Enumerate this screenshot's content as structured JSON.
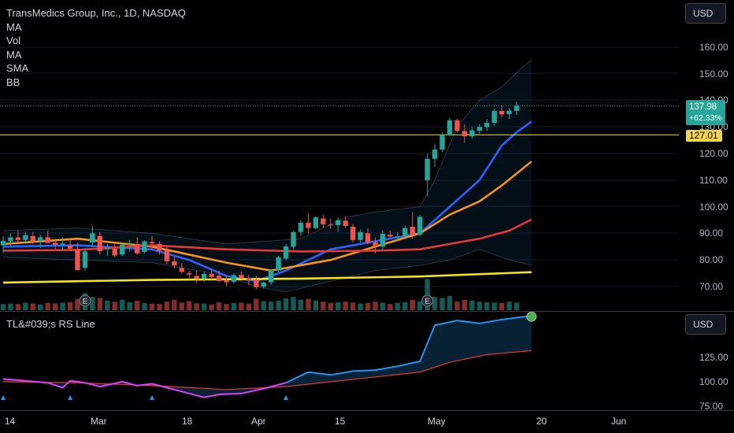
{
  "header": {
    "title": "TransMedics Group, Inc., 1D, NASDAQ",
    "indicators": [
      "MA",
      "Vol",
      "MA",
      "SMA",
      "BB"
    ]
  },
  "currency_button": "USD",
  "rs_pane": {
    "title": "TL&#039;s RS Line",
    "currency_button": "USD",
    "y_ticks": [
      "125.00",
      "100.00",
      "75.00"
    ]
  },
  "price_axis": {
    "ticks": [
      "160.00",
      "150.00",
      "140.00",
      "130.00",
      "120.00",
      "110.00",
      "100.00",
      "90.00",
      "80.00",
      "70.00"
    ],
    "last_price": "137.98",
    "last_change": "+62.33%",
    "hline_value": "127.01"
  },
  "time_axis": {
    "labels": [
      "14",
      "Mar",
      "18",
      "Apr",
      "15",
      "May",
      "20",
      "Jun"
    ]
  },
  "colors": {
    "up": "#26a69a",
    "down": "#ef5350",
    "ma_short": "#2962ff",
    "ma_orange": "#f7931a",
    "ma_red": "#e53935",
    "sma_yellow": "#f5e414",
    "hline": "#f7d54a",
    "rs_line": "#2196f3",
    "rs_ma": "#e53935",
    "rs_low": "#e040fb"
  },
  "chart_data": {
    "type": "candlestick",
    "symbol": "TransMedics Group, Inc.",
    "interval": "1D",
    "exchange": "NASDAQ",
    "ylim": [
      66,
      164
    ],
    "candles": [
      [
        85.5,
        89,
        82.5,
        87.2
      ],
      [
        87,
        90,
        85.5,
        88.5
      ],
      [
        88.5,
        91,
        86.5,
        87.5
      ],
      [
        87.5,
        90.5,
        86,
        89.3
      ],
      [
        89,
        90.5,
        86,
        86.8
      ],
      [
        87,
        89.5,
        84.5,
        88.5
      ],
      [
        88.5,
        91,
        86.5,
        86.4
      ],
      [
        86.5,
        88,
        84,
        85.7
      ],
      [
        85.8,
        88.5,
        83.5,
        86.2
      ],
      [
        85.5,
        87.5,
        83.5,
        84.3
      ],
      [
        84,
        86.5,
        76,
        76.2
      ],
      [
        77,
        84.5,
        76,
        83.2
      ],
      [
        86.5,
        93,
        85,
        90
      ],
      [
        89,
        90.5,
        82,
        83.3
      ],
      [
        84,
        86,
        81.5,
        84.5
      ],
      [
        84.2,
        86,
        81,
        81.7
      ],
      [
        82,
        86.5,
        81.5,
        85.7
      ],
      [
        86,
        87.5,
        83,
        86.1
      ],
      [
        86,
        88.5,
        82,
        82.5
      ],
      [
        83,
        87.5,
        82.5,
        87
      ],
      [
        86.8,
        89,
        84,
        86.3
      ],
      [
        86,
        87,
        82,
        83.5
      ],
      [
        83.5,
        85,
        78.5,
        79.5
      ],
      [
        79.5,
        81.5,
        76.8,
        78
      ],
      [
        77,
        78.8,
        74.8,
        75.5
      ],
      [
        75,
        76,
        72.5,
        74.5
      ],
      [
        74,
        76,
        71.2,
        73
      ],
      [
        73,
        75.5,
        71.6,
        74.8
      ],
      [
        74.7,
        76.5,
        72.6,
        73.6
      ],
      [
        74.1,
        76,
        71.8,
        72.1
      ],
      [
        72.3,
        74,
        70.1,
        71.6
      ],
      [
        71.8,
        75,
        71.1,
        74.3
      ],
      [
        74.4,
        75.8,
        72.8,
        73.1
      ],
      [
        73.2,
        74.5,
        70.5,
        72.4
      ],
      [
        72.6,
        74,
        69,
        69.8
      ],
      [
        70,
        72,
        69.2,
        71.5
      ],
      [
        71.6,
        76.5,
        70.8,
        76.2
      ],
      [
        76,
        81.5,
        75.5,
        81
      ],
      [
        80.5,
        86,
        80,
        85.1
      ],
      [
        85,
        91,
        84,
        90.5
      ],
      [
        90.5,
        95,
        89,
        94
      ],
      [
        94,
        97.5,
        90,
        92
      ],
      [
        92,
        96.5,
        91.5,
        96
      ],
      [
        95.6,
        97,
        92,
        93.4
      ],
      [
        93.3,
        95.5,
        91.8,
        93.1
      ],
      [
        93.1,
        96,
        90.5,
        95
      ],
      [
        94.8,
        96.5,
        92,
        92.8
      ],
      [
        92.5,
        93.5,
        86.5,
        87.5
      ],
      [
        87.5,
        91.5,
        86.5,
        90.5
      ],
      [
        90,
        92,
        86,
        86.5
      ],
      [
        86.7,
        88.5,
        82.5,
        85
      ],
      [
        85,
        91,
        84,
        89.8
      ],
      [
        89.5,
        91,
        88,
        88.8
      ],
      [
        88.7,
        90.5,
        87.5,
        88.9
      ],
      [
        89,
        93,
        88.5,
        92
      ],
      [
        92.5,
        98,
        88,
        89.5
      ],
      [
        89.5,
        97,
        89,
        96.2
      ],
      [
        110,
        120,
        104,
        118
      ],
      [
        118,
        123.5,
        115,
        121.5
      ],
      [
        121.5,
        128,
        120.5,
        127
      ],
      [
        127,
        133.5,
        126.5,
        132.5
      ],
      [
        132.5,
        133,
        128,
        128.5
      ],
      [
        128.5,
        131,
        124,
        126.5
      ],
      [
        126.5,
        130,
        125.5,
        128.7
      ],
      [
        128.6,
        131,
        127,
        130
      ],
      [
        130,
        133,
        128.5,
        131.5
      ],
      [
        131.5,
        137,
        130.5,
        136
      ],
      [
        136,
        138,
        133.5,
        134.7
      ],
      [
        134.8,
        137,
        133,
        136.1
      ],
      [
        136,
        139.5,
        134.5,
        137.98
      ]
    ],
    "volume_ratios": [
      0.32,
      0.35,
      0.33,
      0.4,
      0.35,
      0.3,
      0.38,
      0.36,
      0.4,
      0.42,
      0.6,
      0.9,
      0.7,
      0.65,
      0.5,
      0.45,
      0.55,
      0.42,
      0.5,
      0.38,
      0.35,
      0.33,
      0.45,
      0.55,
      0.4,
      0.48,
      0.36,
      0.35,
      0.3,
      0.42,
      0.33,
      0.38,
      0.4,
      0.35,
      0.6,
      0.48,
      0.45,
      0.5,
      0.62,
      0.7,
      0.55,
      0.6,
      0.5,
      0.45,
      0.38,
      0.42,
      0.45,
      0.4,
      0.35,
      0.38,
      0.45,
      0.4,
      0.33,
      0.38,
      0.42,
      0.55,
      0.48,
      1.65,
      0.7,
      0.65,
      0.75,
      0.45,
      0.55,
      0.5,
      0.45,
      0.42,
      0.4,
      0.38,
      0.45,
      0.4
    ],
    "earnings_markers": [
      11,
      57
    ],
    "moving_averages": [
      {
        "color": "#2962ff",
        "values": [
          [
            0,
            85
          ],
          [
            10,
            85.5
          ],
          [
            20,
            84
          ],
          [
            25,
            80
          ],
          [
            30,
            74
          ],
          [
            34,
            72
          ],
          [
            38,
            76
          ],
          [
            44,
            84
          ],
          [
            50,
            87
          ],
          [
            56,
            90
          ],
          [
            60,
            100
          ],
          [
            64,
            110
          ],
          [
            67,
            123
          ],
          [
            69,
            128
          ],
          [
            71,
            132
          ]
        ]
      },
      {
        "color": "#f7931a",
        "values": [
          [
            0,
            86
          ],
          [
            10,
            88
          ],
          [
            20,
            85
          ],
          [
            30,
            79
          ],
          [
            36,
            76
          ],
          [
            44,
            80
          ],
          [
            50,
            85
          ],
          [
            56,
            90
          ],
          [
            60,
            97
          ],
          [
            64,
            102
          ],
          [
            67,
            108
          ],
          [
            71,
            117
          ]
        ]
      },
      {
        "color": "#e53935",
        "values": [
          [
            0,
            83.5
          ],
          [
            10,
            83.8
          ],
          [
            20,
            85.5
          ],
          [
            30,
            84
          ],
          [
            40,
            83.2
          ],
          [
            50,
            83.5
          ],
          [
            56,
            84
          ],
          [
            60,
            86
          ],
          [
            64,
            88
          ],
          [
            68,
            91
          ],
          [
            71,
            95.2
          ]
        ]
      },
      {
        "color": "#f5e414",
        "values": [
          [
            0,
            71.5
          ],
          [
            20,
            72.5
          ],
          [
            40,
            73
          ],
          [
            56,
            73.8
          ],
          [
            71,
            75.4
          ]
        ]
      }
    ],
    "bollinger": {
      "upper": [
        [
          0,
          91
        ],
        [
          10,
          92
        ],
        [
          20,
          90
        ],
        [
          30,
          86
        ],
        [
          40,
          88
        ],
        [
          46,
          96
        ],
        [
          50,
          98
        ],
        [
          56,
          100
        ],
        [
          58,
          110
        ],
        [
          61,
          130
        ],
        [
          64,
          140
        ],
        [
          67,
          145
        ],
        [
          70,
          153
        ],
        [
          71,
          155
        ]
      ],
      "lower": [
        [
          0,
          81
        ],
        [
          10,
          80
        ],
        [
          20,
          79
        ],
        [
          30,
          74
        ],
        [
          34,
          70
        ],
        [
          38,
          68
        ],
        [
          44,
          72
        ],
        [
          50,
          76
        ],
        [
          56,
          78
        ],
        [
          60,
          80
        ],
        [
          64,
          84
        ],
        [
          68,
          80
        ],
        [
          71,
          78
        ]
      ]
    },
    "rs_line": [
      [
        0,
        103
      ],
      [
        3,
        101
      ],
      [
        6,
        99
      ],
      [
        8,
        94
      ],
      [
        9,
        101
      ],
      [
        11,
        99
      ],
      [
        13,
        95
      ],
      [
        16,
        100
      ],
      [
        18,
        96
      ],
      [
        20,
        98
      ],
      [
        22,
        94
      ],
      [
        24,
        90
      ],
      [
        27,
        84
      ],
      [
        29,
        87
      ],
      [
        32,
        88
      ],
      [
        35,
        93
      ],
      [
        38,
        99
      ],
      [
        41,
        110
      ],
      [
        44,
        107
      ],
      [
        47,
        111
      ],
      [
        50,
        112
      ],
      [
        53,
        116
      ],
      [
        56,
        121
      ],
      [
        58,
        158
      ],
      [
        61,
        163
      ],
      [
        64,
        160
      ],
      [
        67,
        164
      ],
      [
        70,
        167
      ],
      [
        71,
        167
      ]
    ],
    "rs_ma": [
      [
        0,
        100
      ],
      [
        10,
        99
      ],
      [
        20,
        96
      ],
      [
        30,
        92
      ],
      [
        38,
        95
      ],
      [
        44,
        100
      ],
      [
        50,
        105
      ],
      [
        56,
        110
      ],
      [
        60,
        120
      ],
      [
        65,
        128
      ],
      [
        71,
        132
      ]
    ],
    "rs_ylim": [
      70,
      172
    ]
  }
}
